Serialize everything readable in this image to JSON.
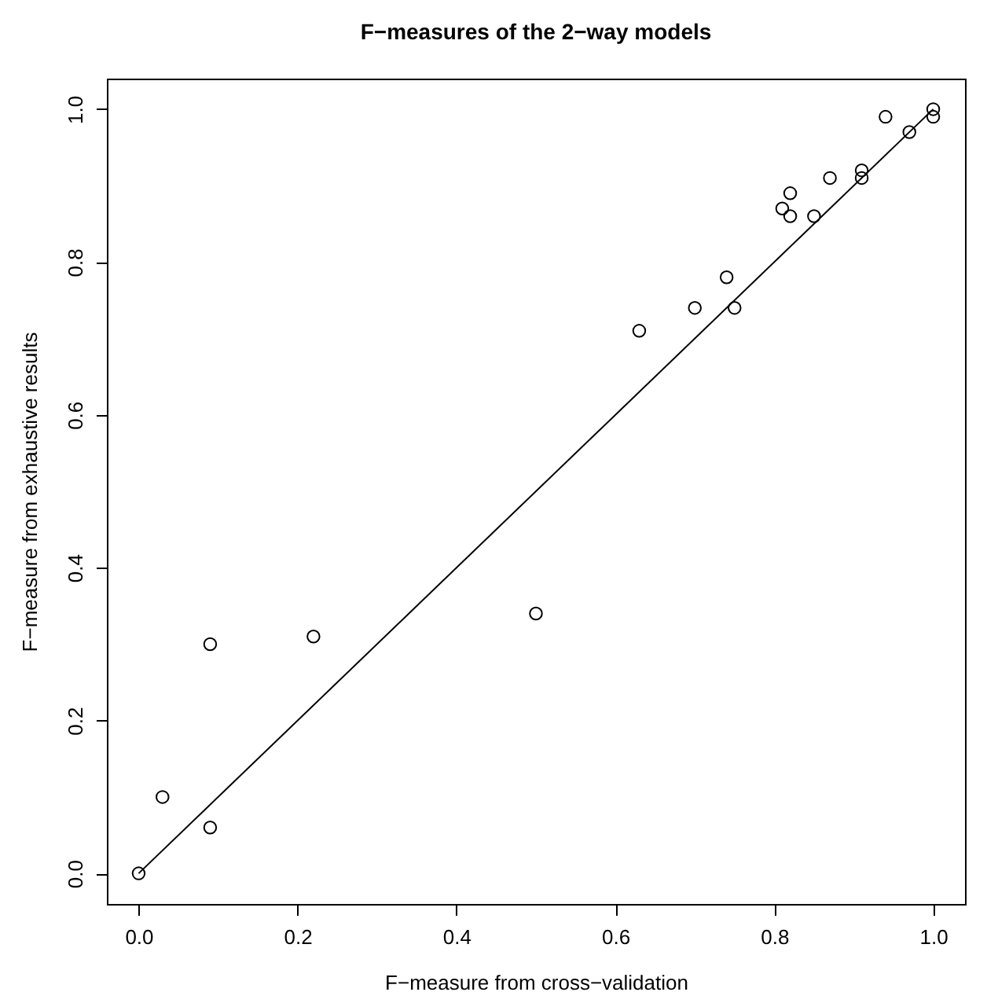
{
  "chart_data": {
    "type": "scatter",
    "title": "F−measures of the 2−way models",
    "xlabel": "F−measure from cross−validation",
    "ylabel": "F−measure from exhaustive results",
    "xlim": [
      -0.04,
      1.04
    ],
    "ylim": [
      -0.04,
      1.04
    ],
    "xticks": [
      {
        "value": 0,
        "label": "0.0"
      },
      0.2,
      0.4,
      0.6,
      0.8,
      {
        "value": 1,
        "label": "1.0"
      }
    ],
    "yticks": [
      {
        "value": 0,
        "label": "0.0"
      },
      0.2,
      0.4,
      0.6,
      0.8,
      {
        "value": 1,
        "label": "1.0"
      }
    ],
    "grid": false,
    "marker": "circle",
    "series": [
      {
        "color": "#000000",
        "x": [
          0,
          0.03,
          0.09,
          0.09,
          0.22,
          0.5,
          0.63,
          0.7,
          0.74,
          0.75,
          0.81,
          0.82,
          0.82,
          0.85,
          0.87,
          0.91,
          0.91,
          0.94,
          0.97,
          1,
          1
        ],
        "values": [
          0,
          0.1,
          0.06,
          0.3,
          0.31,
          0.34,
          0.71,
          0.74,
          0.78,
          0.74,
          0.87,
          0.89,
          0.86,
          0.86,
          0.91,
          0.92,
          0.91,
          0.99,
          0.97,
          1,
          0.99
        ]
      },
      {
        "type": "line",
        "color": "#000000",
        "marker": "none",
        "line_style": "solid",
        "x": [
          0,
          1
        ],
        "values": [
          0,
          1
        ]
      }
    ]
  }
}
